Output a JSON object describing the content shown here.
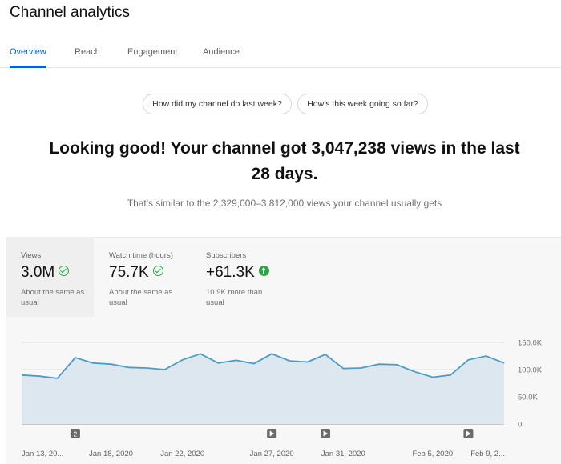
{
  "page": {
    "title": "Channel analytics"
  },
  "tabs": [
    {
      "label": "Overview",
      "active": true
    },
    {
      "label": "Reach",
      "active": false
    },
    {
      "label": "Engagement",
      "active": false
    },
    {
      "label": "Audience",
      "active": false
    }
  ],
  "chips": [
    {
      "label": "How did my channel do last week?"
    },
    {
      "label": "How's this week going so far?"
    }
  ],
  "summary": {
    "headline": "Looking good! Your channel got 3,047,238 views in the last 28 days.",
    "subline": "That's similar to the 2,329,000–3,812,000 views your channel usually gets"
  },
  "metrics": [
    {
      "label": "Views",
      "value": "3.0M",
      "icon": "check-circle-icon",
      "desc": "About the same as usual",
      "selected": true
    },
    {
      "label": "Watch time (hours)",
      "value": "75.7K",
      "icon": "check-circle-icon",
      "desc": "About the same as usual",
      "selected": false
    },
    {
      "label": "Subscribers",
      "value": "+61.3K",
      "icon": "arrow-up-circle-icon",
      "desc": "10.9K more than usual",
      "selected": false
    }
  ],
  "colors": {
    "accent": "#065fd4",
    "positive": "#2ba640",
    "line": "#4a9cc4",
    "area": "#dde7ef"
  },
  "chart_data": {
    "type": "area",
    "title": "",
    "xlabel": "",
    "ylabel": "",
    "ylim": [
      0,
      150000
    ],
    "y_ticks": [
      "0",
      "50.0K",
      "100.0K",
      "150.0K"
    ],
    "y_tick_values": [
      0,
      50000,
      100000,
      150000
    ],
    "x_tick_labels": [
      "Jan 13, 20...",
      "Jan 18, 2020",
      "Jan 22, 2020",
      "Jan 27, 2020",
      "Jan 31, 2020",
      "Feb 5, 2020",
      "Feb 9, 2..."
    ],
    "x_tick_index": [
      0,
      5,
      9,
      14,
      18,
      23,
      27
    ],
    "series": [
      {
        "values": [
          90000,
          88000,
          84000,
          122000,
          112000,
          110000,
          104000,
          103000,
          100000,
          118000,
          129000,
          112000,
          117000,
          111000,
          129000,
          116000,
          114000,
          128000,
          102000,
          103000,
          110000,
          109000,
          96000,
          86000,
          90000,
          118000,
          125000,
          112000
        ]
      }
    ],
    "markers": [
      {
        "index": 3,
        "label": "2",
        "icon": ""
      },
      {
        "index": 14,
        "label": "",
        "icon": "play-icon"
      },
      {
        "index": 17,
        "label": "",
        "icon": "play-icon"
      },
      {
        "index": 25,
        "label": "",
        "icon": "play-icon"
      }
    ],
    "grid": true
  }
}
